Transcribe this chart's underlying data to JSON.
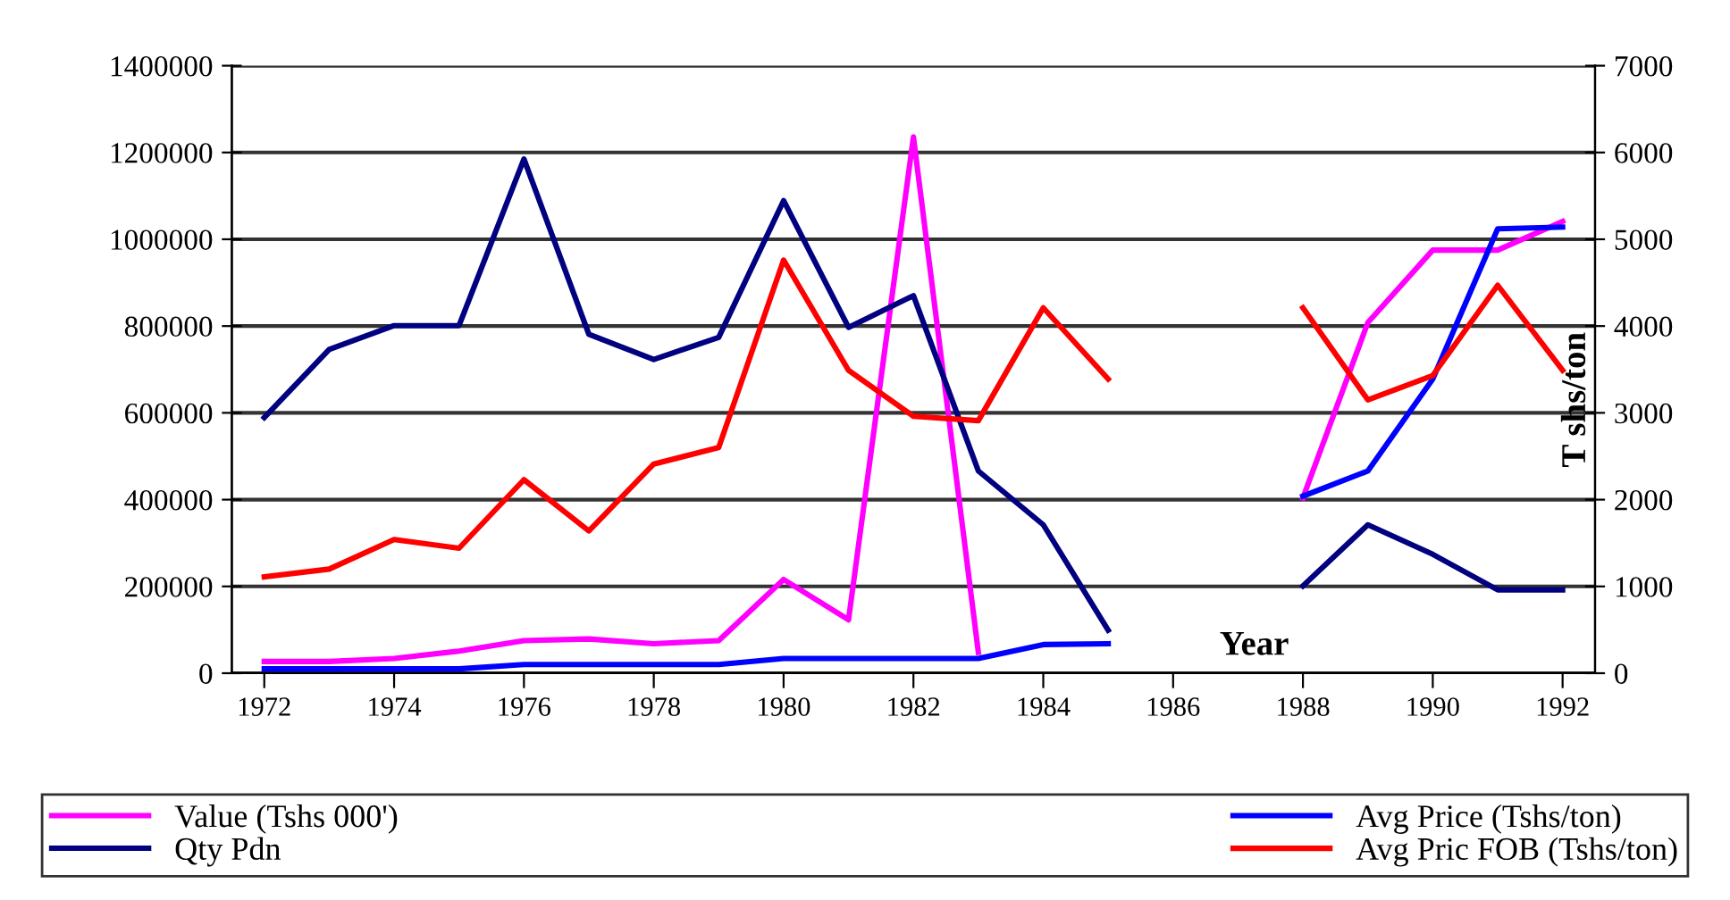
{
  "chart_data": {
    "type": "line",
    "x": [
      1972,
      1973,
      1974,
      1975,
      1976,
      1977,
      1978,
      1979,
      1980,
      1981,
      1982,
      1983,
      1984,
      1985,
      1986,
      1987,
      1988,
      1989,
      1990,
      1991,
      1992
    ],
    "series": [
      {
        "name": "Value (Tshs 000')",
        "color": "#ff00ff",
        "values": [
          27000,
          27000,
          34000,
          51000,
          75000,
          79000,
          68000,
          75000,
          216000,
          123000,
          1236000,
          48000,
          null,
          null,
          null,
          null,
          404000,
          808000,
          975000,
          975000,
          1041000
        ]
      },
      {
        "name": "Qty Pdn",
        "color": "#000080",
        "values": [
          589000,
          746000,
          801000,
          801000,
          1185000,
          781000,
          723000,
          774000,
          1089000,
          797000,
          870000,
          466000,
          342000,
          99000,
          null,
          null,
          201000,
          342000,
          274000,
          192000,
          192000
        ]
      },
      {
        "name": "Avg Price (Tshs/ton)",
        "color": "#0000ff",
        "axis": "y2",
        "values": [
          50,
          50,
          50,
          50,
          100,
          100,
          100,
          100,
          170,
          170,
          170,
          170,
          330,
          340,
          null,
          null,
          2040,
          2330,
          3390,
          5120,
          5140
        ]
      },
      {
        "name": "Avg Pric FOB (Tshs/ton)",
        "color": "#ff0000",
        "axis": "y2",
        "values": [
          1110,
          1200,
          1540,
          1440,
          2230,
          1640,
          2410,
          2600,
          4760,
          3490,
          2960,
          2910,
          4210,
          3390,
          null,
          null,
          4210,
          3150,
          3430,
          4470,
          3490
        ]
      }
    ],
    "xlabel": "Year",
    "y2label": "T shs/ton",
    "xlim": [
      1971.5,
      1992.5
    ],
    "xticks": [
      1972,
      1974,
      1976,
      1978,
      1980,
      1982,
      1984,
      1986,
      1988,
      1990,
      1992
    ],
    "ylim": [
      0,
      1400000
    ],
    "yticks": [
      0,
      200000,
      400000,
      600000,
      800000,
      1000000,
      1200000,
      1400000
    ],
    "y2lim": [
      0,
      7000
    ],
    "y2ticks": [
      0,
      1000,
      2000,
      3000,
      4000,
      5000,
      6000,
      7000
    ],
    "grid": "y",
    "legend": "bottom",
    "marker": "none",
    "line_style": "solid"
  }
}
